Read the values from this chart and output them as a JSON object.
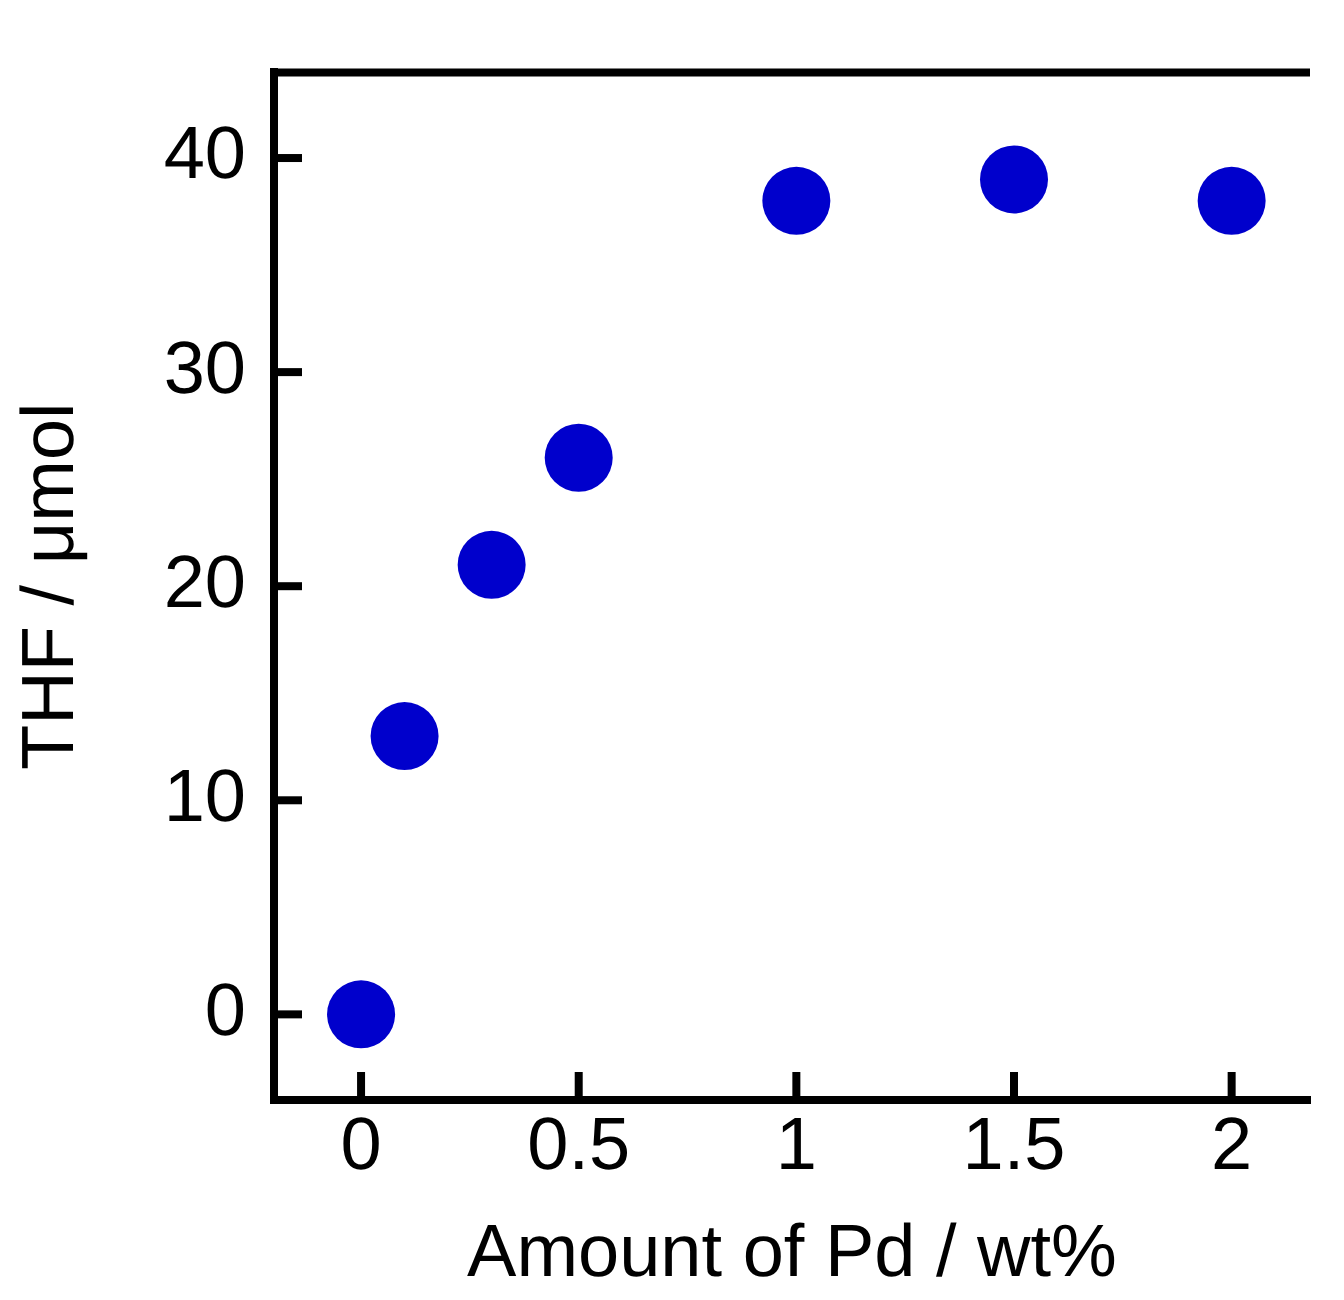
{
  "chart_data": {
    "type": "scatter",
    "xlabel": "Amount of Pd / wt%",
    "ylabel": "THF / μmol",
    "x": [
      0,
      0.1,
      0.3,
      0.5,
      1,
      1.5,
      2
    ],
    "series": [
      {
        "color": "#0000cc",
        "values": [
          0,
          13,
          21,
          26,
          38,
          39,
          38
        ]
      }
    ],
    "xlim": [
      -0.2,
      2.18
    ],
    "xticks": [
      0,
      0.5,
      1,
      1.5,
      2
    ],
    "ylim": [
      -4,
      44
    ],
    "yticks": [
      0,
      10,
      20,
      30,
      40
    ],
    "grid": false,
    "legend": false,
    "marker": "circle"
  }
}
